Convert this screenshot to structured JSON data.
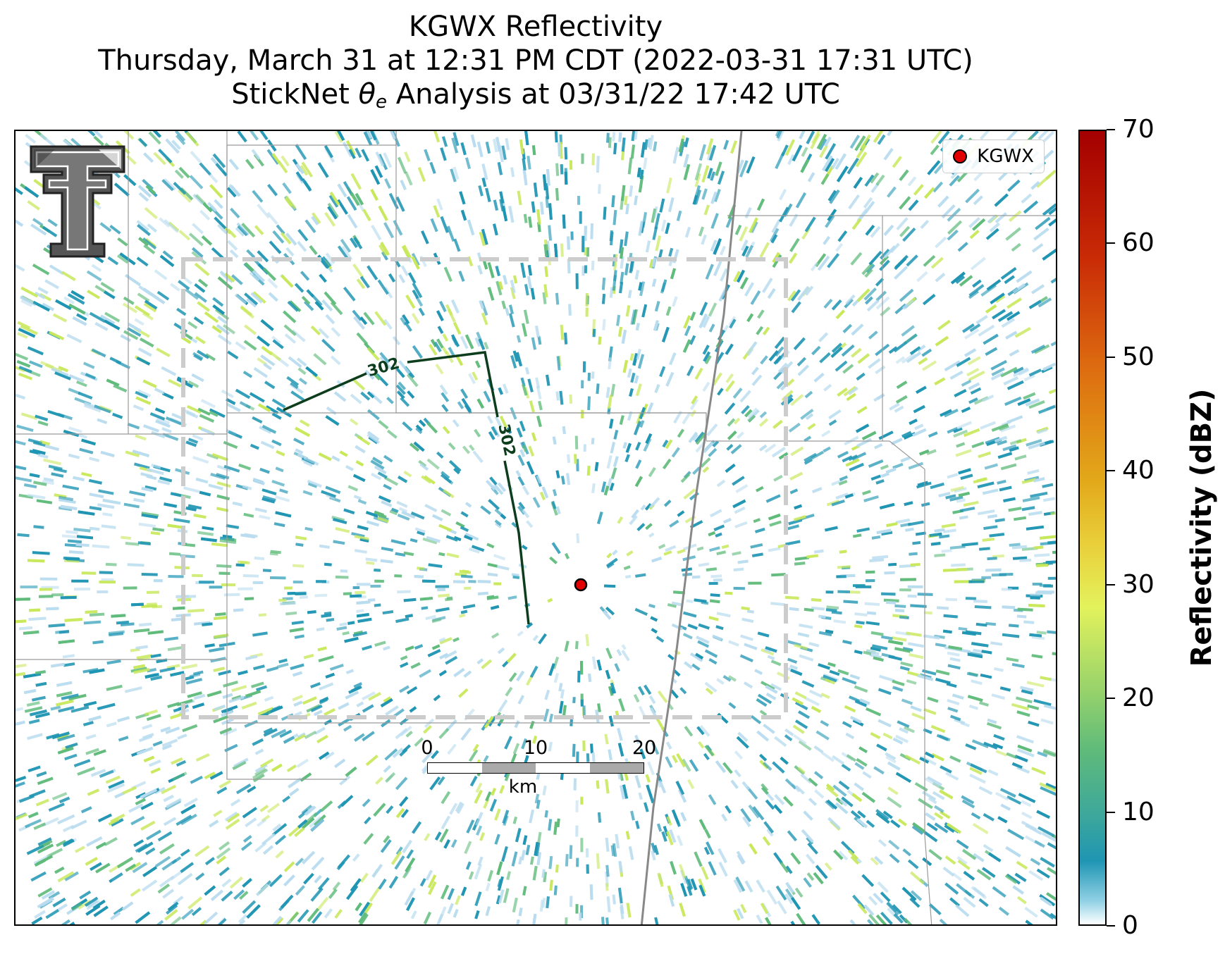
{
  "title": {
    "line1": "KGWX Reflectivity",
    "line2": "Thursday, March 31 at 12:31 PM CDT (2022-03-31 17:31 UTC)",
    "line3_prefix": "StickNet ",
    "line3_symbol": "θ",
    "line3_subscript": "e",
    "line3_suffix": " Analysis at 03/31/22 17:42 UTC"
  },
  "legend": {
    "label": "KGWX",
    "marker_color": "#e30000"
  },
  "contour": {
    "label": "302",
    "color": "#0c3d1c"
  },
  "scalebar": {
    "ticks": [
      "0",
      "10",
      "20"
    ],
    "unit": "km"
  },
  "colorbar": {
    "title": "Reflectivity (dBZ)",
    "ticks": [
      "0",
      "10",
      "20",
      "30",
      "40",
      "50",
      "60",
      "70"
    ],
    "min": 0,
    "max": 70
  },
  "colors": {
    "analysis_box": "#cccccc",
    "county_lines": "#9a9a9a",
    "highway": "#888888",
    "echo_light": "#b9dcef",
    "echo_main": "#1f95b3",
    "echo_green": "#5fbb7a",
    "echo_yellow": "#c8e85a"
  },
  "logo": {
    "icon": "texas-tech-double-t-logo"
  }
}
